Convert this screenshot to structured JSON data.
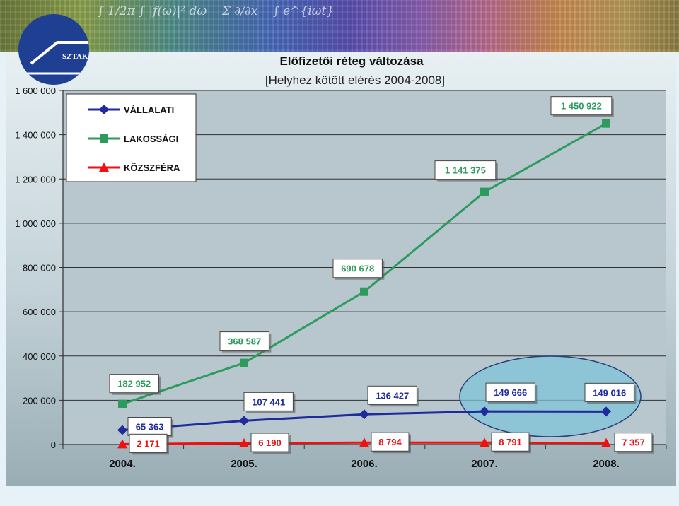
{
  "header": {
    "logo_text": "SZTAKI"
  },
  "colors": {
    "vallalati": "#1f2a9c",
    "lakossagi": "#2e9b5e",
    "kozszfera": "#ee1111",
    "highlight": "#7fc3d8"
  },
  "chart_data": {
    "type": "line",
    "title": "Előfizetői réteg változása",
    "subtitle": "[Helyhez kötött elérés 2004-2008]",
    "categories": [
      "2004.",
      "2005.",
      "2006.",
      "2007.",
      "2008."
    ],
    "ylim": [
      0,
      1600000
    ],
    "yticks": [
      "0",
      "200 000",
      "400 000",
      "600 000",
      "800 000",
      "1 000 000",
      "1 200 000",
      "1 400 000",
      "1 600 000"
    ],
    "grid": true,
    "legend_position": "top-left",
    "series": [
      {
        "name": "VÁLLALATI",
        "marker": "diamond",
        "values": [
          65363,
          107441,
          136427,
          149666,
          149016
        ],
        "labels": [
          "65 363",
          "107 441",
          "136 427",
          "149 666",
          "149 016"
        ]
      },
      {
        "name": "LAKOSSÁGI",
        "marker": "square",
        "values": [
          182952,
          368587,
          690678,
          1141375,
          1450922
        ],
        "labels": [
          "182 952",
          "368 587",
          "690 678",
          "1 141 375",
          "1 450 922"
        ]
      },
      {
        "name": "KÖZSZFÉRA",
        "marker": "triangle",
        "values": [
          2171,
          6190,
          8794,
          8791,
          7357
        ],
        "labels": [
          "2 171",
          "6 190",
          "8 794",
          "8 791",
          "7 357"
        ]
      }
    ]
  }
}
